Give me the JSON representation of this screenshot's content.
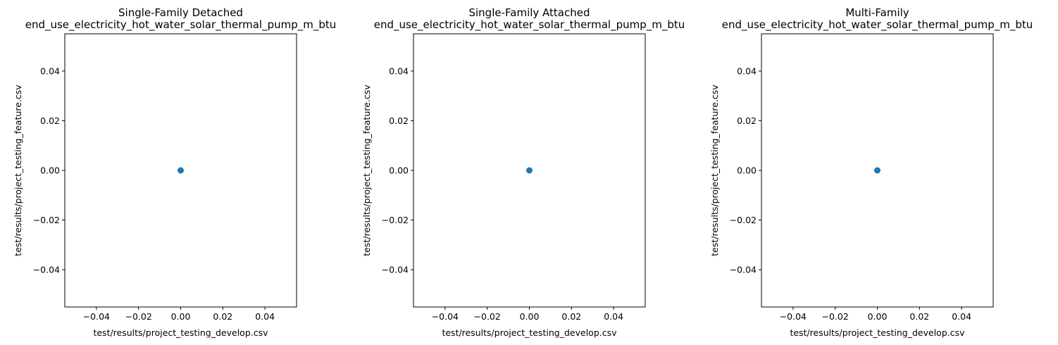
{
  "chart_data": [
    {
      "type": "scatter",
      "title_line1": "Single-Family Detached",
      "title_line2": "end_use_electricity_hot_water_solar_thermal_pump_m_btu",
      "xlabel": "test/results/project_testing_develop.csv",
      "ylabel": "test/results/project_testing_feature.csv",
      "xlim": [
        -0.055,
        0.055
      ],
      "ylim": [
        -0.055,
        0.055
      ],
      "xticks": [
        -0.04,
        -0.02,
        0.0,
        0.02,
        0.04
      ],
      "yticks": [
        -0.04,
        -0.02,
        0.0,
        0.02,
        0.04
      ],
      "xtick_labels": [
        "−0.04",
        "−0.02",
        "0.00",
        "0.02",
        "0.04"
      ],
      "ytick_labels": [
        "−0.04",
        "−0.02",
        "0.00",
        "0.02",
        "0.04"
      ],
      "points": [
        {
          "x": 0.0,
          "y": 0.0
        }
      ],
      "color": "#1f77b4",
      "grid": false
    },
    {
      "type": "scatter",
      "title_line1": "Single-Family Attached",
      "title_line2": "end_use_electricity_hot_water_solar_thermal_pump_m_btu",
      "xlabel": "test/results/project_testing_develop.csv",
      "ylabel": "test/results/project_testing_feature.csv",
      "xlim": [
        -0.055,
        0.055
      ],
      "ylim": [
        -0.055,
        0.055
      ],
      "xticks": [
        -0.04,
        -0.02,
        0.0,
        0.02,
        0.04
      ],
      "yticks": [
        -0.04,
        -0.02,
        0.0,
        0.02,
        0.04
      ],
      "xtick_labels": [
        "−0.04",
        "−0.02",
        "0.00",
        "0.02",
        "0.04"
      ],
      "ytick_labels": [
        "−0.04",
        "−0.02",
        "0.00",
        "0.02",
        "0.04"
      ],
      "points": [
        {
          "x": 0.0,
          "y": 0.0
        }
      ],
      "color": "#1f77b4",
      "grid": false
    },
    {
      "type": "scatter",
      "title_line1": "Multi-Family",
      "title_line2": "end_use_electricity_hot_water_solar_thermal_pump_m_btu",
      "xlabel": "test/results/project_testing_develop.csv",
      "ylabel": "test/results/project_testing_feature.csv",
      "xlim": [
        -0.055,
        0.055
      ],
      "ylim": [
        -0.055,
        0.055
      ],
      "xticks": [
        -0.04,
        -0.02,
        0.0,
        0.02,
        0.04
      ],
      "yticks": [
        -0.04,
        -0.02,
        0.0,
        0.02,
        0.04
      ],
      "xtick_labels": [
        "−0.04",
        "−0.02",
        "0.00",
        "0.02",
        "0.04"
      ],
      "ytick_labels": [
        "−0.04",
        "−0.02",
        "0.00",
        "0.02",
        "0.04"
      ],
      "points": [
        {
          "x": 0.0,
          "y": 0.0
        }
      ],
      "color": "#1f77b4",
      "grid": false
    }
  ]
}
